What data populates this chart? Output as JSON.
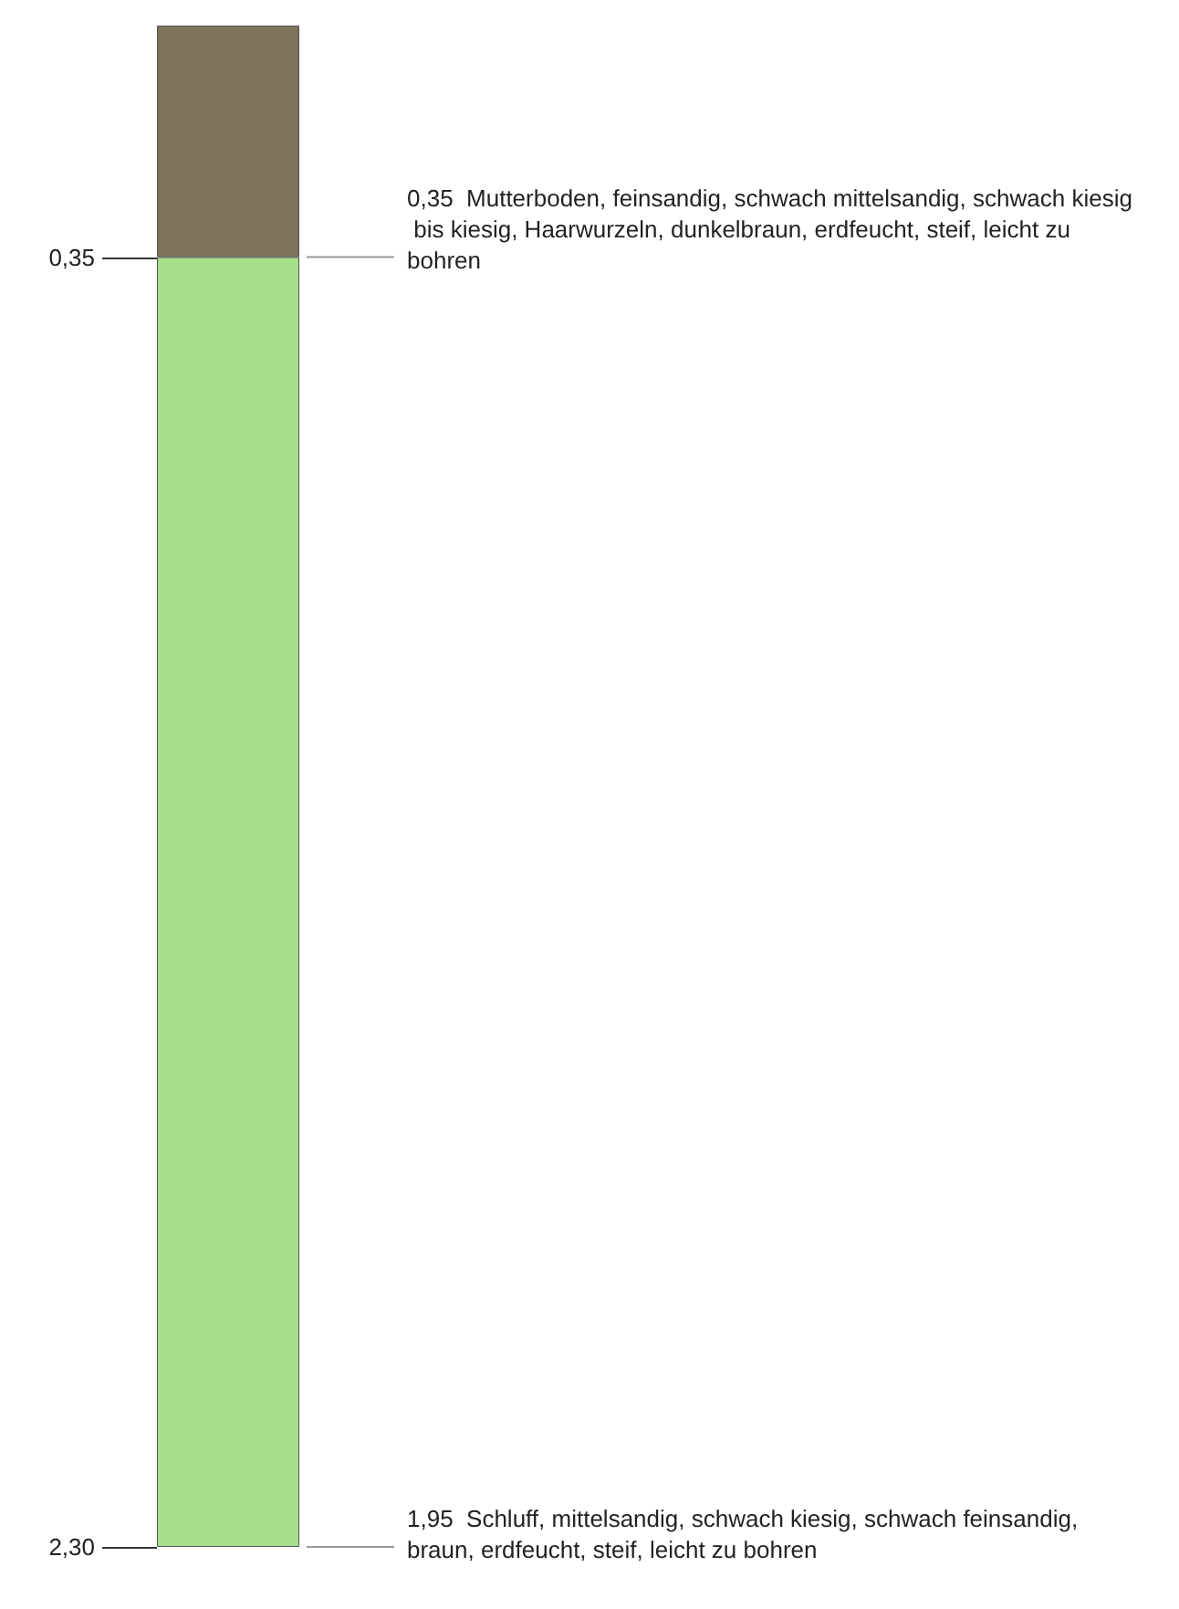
{
  "chart_data": {
    "type": "bar",
    "stacked": true,
    "categories": [
      null
    ],
    "series": [
      {
        "color": "#7d7358",
        "values": [
          0.35
        ]
      },
      {
        "color": "#a6df8a",
        "values": [
          1.95
        ]
      }
    ],
    "ylim": [
      2.3,
      0
    ],
    "yticks": [
      {
        "value": 0.35,
        "label": "0,35"
      },
      {
        "value": 2.3,
        "label": "2,30"
      }
    ],
    "grid": false,
    "annotations": [
      "0,35  Mutterboden, feinsandig, schwach mittelsandig, schwach kiesig bis kiesig, Haarwurzeln, dunkelbraun, erdfeucht, steif, leicht zu bohren",
      "1,95  Schluff, mittelsandig, schwach kiesig, schwach feinsandig, braun, erdfeucht, steif, leicht zu bohren"
    ]
  }
}
